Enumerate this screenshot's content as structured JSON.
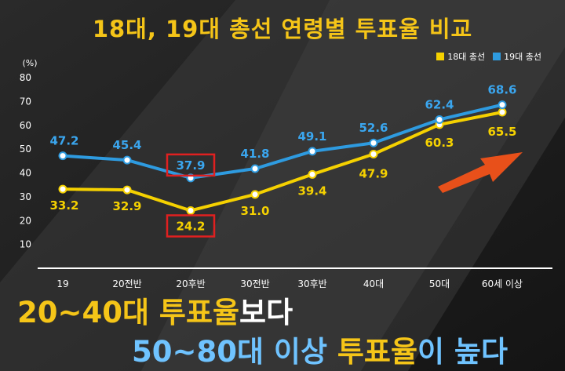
{
  "chart_data": {
    "type": "line",
    "title": "18대, 19대 총선 연령별 투표율 비교",
    "ylabel": "(%)",
    "ylim": [
      0,
      80
    ],
    "yticks": [
      10,
      20,
      30,
      40,
      50,
      60,
      70,
      80
    ],
    "categories": [
      "19",
      "20전반",
      "20후반",
      "30전반",
      "30후반",
      "40대",
      "50대",
      "60세 이상"
    ],
    "series": [
      {
        "name": "18대 총선",
        "color": "#f5d100",
        "values": [
          33.2,
          32.9,
          24.2,
          31.0,
          39.4,
          47.9,
          60.3,
          65.5
        ],
        "labels": [
          "33.2",
          "32.9",
          "24.2",
          "31.0",
          "39.4",
          "47.9",
          "60.3",
          "65.5"
        ]
      },
      {
        "name": "19대 총선",
        "color": "#2e9be0",
        "values": [
          47.2,
          45.4,
          37.9,
          41.8,
          49.1,
          52.6,
          62.4,
          68.6
        ],
        "labels": [
          "47.2",
          "45.4",
          "37.9",
          "41.8",
          "49.1",
          "52.6",
          "62.4",
          "68.6"
        ]
      }
    ],
    "highlighted": [
      "20후반"
    ],
    "legend": "top-right",
    "grid": false
  },
  "caption": {
    "line1": {
      "a": "20~40대 투표율",
      "b": "보다"
    },
    "line2": {
      "a": "50~80대 이상 ",
      "b": "투표율",
      "c": "이 높다"
    }
  },
  "colors": {
    "title": "#f5c518",
    "highlight_box": "#e02020",
    "arrow": "#e8501a"
  }
}
